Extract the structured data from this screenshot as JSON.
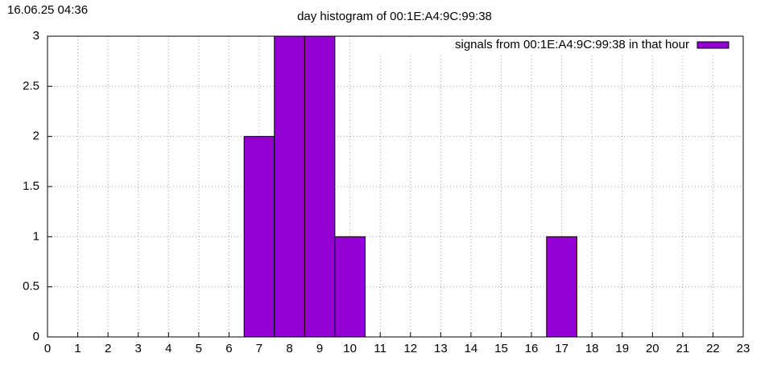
{
  "chart_data": {
    "type": "bar",
    "timestamp": "16.06.25 04:36",
    "title": "day histogram of 00:1E:A4:9C:99:38",
    "x": [
      7,
      8,
      9,
      10,
      17
    ],
    "series": [
      {
        "name": "signals from 00:1E:A4:9C:99:38 in that hour",
        "color": "#9400d3",
        "values": [
          2,
          3,
          3,
          1,
          1
        ]
      }
    ],
    "xlim": [
      0,
      23
    ],
    "xticks": [
      0,
      1,
      2,
      3,
      4,
      5,
      6,
      7,
      8,
      9,
      10,
      11,
      12,
      13,
      14,
      15,
      16,
      17,
      18,
      19,
      20,
      21,
      22,
      23
    ],
    "ylim": [
      0,
      3
    ],
    "yticks": [
      0,
      0.5,
      1,
      1.5,
      2,
      2.5,
      3
    ],
    "grid": true,
    "legend": "top-right"
  }
}
